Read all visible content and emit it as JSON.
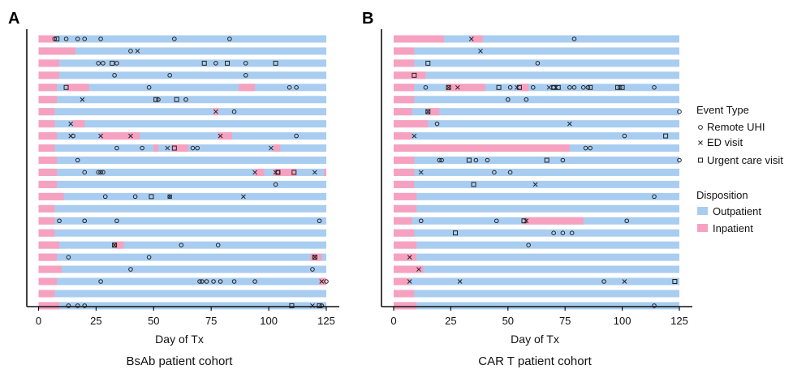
{
  "chart_data": [
    {
      "panel": "A",
      "caption": "BsAb patient cohort",
      "type": "bar",
      "xlabel": "Day of Tx",
      "xlim": [
        0,
        125
      ],
      "xticks": [
        0,
        25,
        50,
        75,
        100,
        125
      ],
      "patients": [
        {
          "outpatient": [
            [
              0,
              125
            ]
          ],
          "inpatient": [
            [
              0,
              7
            ]
          ],
          "remote": [
            7,
            12,
            17,
            20,
            27,
            59,
            83
          ],
          "ed": [],
          "urgent": [
            8
          ]
        },
        {
          "outpatient": [
            [
              0,
              125
            ]
          ],
          "inpatient": [
            [
              0,
              16
            ]
          ],
          "remote": [
            40
          ],
          "ed": [
            43
          ],
          "urgent": []
        },
        {
          "outpatient": [
            [
              0,
              125
            ]
          ],
          "inpatient": [
            [
              0,
              9
            ]
          ],
          "remote": [
            26,
            28,
            34,
            77,
            90
          ],
          "ed": [],
          "urgent": [
            32,
            72,
            82,
            103
          ]
        },
        {
          "outpatient": [
            [
              0,
              125
            ]
          ],
          "inpatient": [
            [
              0,
              9
            ]
          ],
          "remote": [
            33,
            57,
            90
          ],
          "ed": [],
          "urgent": []
        },
        {
          "outpatient": [
            [
              0,
              125
            ]
          ],
          "inpatient": [
            [
              0,
              8
            ],
            [
              12,
              22
            ],
            [
              87,
              94
            ]
          ],
          "remote": [
            48,
            109,
            112
          ],
          "ed": [],
          "urgent": [
            12
          ]
        },
        {
          "outpatient": [
            [
              0,
              125
            ]
          ],
          "inpatient": [
            [
              0,
              8
            ]
          ],
          "remote": [
            52,
            64
          ],
          "ed": [
            19
          ],
          "urgent": [
            51,
            60
          ]
        },
        {
          "outpatient": [
            [
              0,
              125
            ]
          ],
          "inpatient": [
            [
              0,
              7
            ],
            [
              76,
              78
            ]
          ],
          "remote": [
            85
          ],
          "ed": [
            77
          ],
          "urgent": []
        },
        {
          "outpatient": [
            [
              0,
              125
            ]
          ],
          "inpatient": [
            [
              0,
              7
            ],
            [
              15,
              20
            ]
          ],
          "remote": [],
          "ed": [
            14
          ],
          "urgent": []
        },
        {
          "outpatient": [
            [
              0,
              125
            ]
          ],
          "inpatient": [
            [
              0,
              8
            ],
            [
              27,
              44
            ],
            [
              78,
              84
            ]
          ],
          "remote": [
            15,
            112
          ],
          "ed": [
            14,
            27,
            40,
            79
          ],
          "urgent": []
        },
        {
          "outpatient": [
            [
              0,
              125
            ]
          ],
          "inpatient": [
            [
              0,
              7
            ],
            [
              50,
              52
            ],
            [
              58,
              65
            ],
            [
              102,
              105
            ]
          ],
          "remote": [
            34,
            45,
            67,
            69
          ],
          "ed": [
            56,
            101
          ],
          "urgent": [
            59
          ]
        },
        {
          "outpatient": [
            [
              0,
              125
            ]
          ],
          "inpatient": [
            [
              0,
              8
            ]
          ],
          "remote": [
            17
          ],
          "ed": [],
          "urgent": []
        },
        {
          "outpatient": [
            [
              0,
              125
            ]
          ],
          "inpatient": [
            [
              0,
              8
            ],
            [
              94,
              98
            ],
            [
              102,
              112
            ],
            [
              124,
              125
            ]
          ],
          "remote": [
            20,
            26,
            27,
            28,
            104
          ],
          "ed": [
            94,
            103,
            120
          ],
          "urgent": [
            104,
            111
          ]
        },
        {
          "outpatient": [
            [
              0,
              125
            ]
          ],
          "inpatient": [
            [
              0,
              8
            ]
          ],
          "remote": [
            103
          ],
          "ed": [],
          "urgent": []
        },
        {
          "outpatient": [
            [
              0,
              125
            ]
          ],
          "inpatient": [
            [
              0,
              11
            ]
          ],
          "remote": [
            29,
            42,
            57
          ],
          "ed": [
            57,
            89
          ],
          "urgent": [
            49
          ]
        },
        {
          "outpatient": [
            [
              0,
              125
            ]
          ],
          "inpatient": [
            [
              0,
              7
            ]
          ],
          "remote": [],
          "ed": [],
          "urgent": []
        },
        {
          "outpatient": [
            [
              0,
              125
            ]
          ],
          "inpatient": [
            [
              0,
              7
            ]
          ],
          "remote": [
            9,
            20,
            34,
            122
          ],
          "ed": [],
          "urgent": []
        },
        {
          "outpatient": [
            [
              0,
              125
            ]
          ],
          "inpatient": [
            [
              0,
              7
            ]
          ],
          "remote": [],
          "ed": [],
          "urgent": []
        },
        {
          "outpatient": [
            [
              0,
              125
            ]
          ],
          "inpatient": [
            [
              0,
              9
            ],
            [
              33,
              37
            ]
          ],
          "remote": [
            62,
            78
          ],
          "ed": [
            33
          ],
          "urgent": [
            33
          ]
        },
        {
          "outpatient": [
            [
              0,
              125
            ]
          ],
          "inpatient": [
            [
              0,
              8
            ],
            [
              118,
              123
            ]
          ],
          "remote": [
            13,
            48
          ],
          "ed": [
            120
          ],
          "urgent": [
            120
          ]
        },
        {
          "outpatient": [
            [
              0,
              125
            ]
          ],
          "inpatient": [
            [
              0,
              10
            ]
          ],
          "remote": [
            40,
            119
          ],
          "ed": [],
          "urgent": []
        },
        {
          "outpatient": [
            [
              0,
              125
            ]
          ],
          "inpatient": [
            [
              0,
              8
            ],
            [
              122,
              125
            ]
          ],
          "remote": [
            27,
            70,
            71,
            73,
            76,
            79,
            85,
            94,
            125
          ],
          "ed": [
            123
          ],
          "urgent": []
        },
        {
          "outpatient": [
            [
              0,
              125
            ]
          ],
          "inpatient": [
            [
              0,
              7
            ]
          ],
          "remote": [],
          "ed": [],
          "urgent": []
        },
        {
          "outpatient": [
            [
              0,
              125
            ]
          ],
          "inpatient": [
            [
              0,
              9
            ]
          ],
          "remote": [
            13,
            17,
            20,
            123
          ],
          "ed": [
            119
          ],
          "urgent": [
            110,
            122
          ]
        }
      ]
    },
    {
      "panel": "B",
      "caption": "CAR T patient cohort",
      "type": "bar",
      "xlabel": "Day of Tx",
      "xlim": [
        0,
        125
      ],
      "xticks": [
        0,
        25,
        50,
        75,
        100,
        125
      ],
      "patients": [
        {
          "outpatient": [
            [
              0,
              125
            ]
          ],
          "inpatient": [
            [
              0,
              22
            ],
            [
              34,
              39
            ]
          ],
          "remote": [
            79
          ],
          "ed": [
            34
          ],
          "urgent": []
        },
        {
          "outpatient": [
            [
              0,
              125
            ]
          ],
          "inpatient": [
            [
              0,
              9
            ]
          ],
          "remote": [],
          "ed": [
            38
          ],
          "urgent": []
        },
        {
          "outpatient": [
            [
              0,
              125
            ]
          ],
          "inpatient": [
            [
              0,
              9
            ]
          ],
          "remote": [
            63
          ],
          "ed": [],
          "urgent": [
            15
          ]
        },
        {
          "outpatient": [
            [
              0,
              125
            ]
          ],
          "inpatient": [
            [
              0,
              14
            ]
          ],
          "remote": [],
          "ed": [],
          "urgent": [
            9
          ]
        },
        {
          "outpatient": [
            [
              0,
              125
            ]
          ],
          "inpatient": [
            [
              0,
              9
            ],
            [
              23,
              40
            ],
            [
              55,
              59
            ]
          ],
          "remote": [
            14,
            51,
            61,
            70,
            77,
            79,
            83,
            85,
            99,
            114
          ],
          "ed": [
            24,
            28,
            54,
            68,
            71
          ],
          "urgent": [
            24,
            46,
            55,
            70,
            72,
            86,
            98,
            100
          ]
        },
        {
          "outpatient": [
            [
              0,
              125
            ]
          ],
          "inpatient": [
            [
              0,
              9
            ]
          ],
          "remote": [
            50,
            58
          ],
          "ed": [],
          "urgent": []
        },
        {
          "outpatient": [
            [
              0,
              125
            ]
          ],
          "inpatient": [
            [
              0,
              8
            ],
            [
              15,
              20
            ]
          ],
          "remote": [
            125
          ],
          "ed": [
            15
          ],
          "urgent": [
            15
          ]
        },
        {
          "outpatient": [
            [
              0,
              125
            ]
          ],
          "inpatient": [
            [
              0,
              15
            ]
          ],
          "remote": [
            19
          ],
          "ed": [
            77
          ],
          "urgent": []
        },
        {
          "outpatient": [
            [
              0,
              125
            ]
          ],
          "inpatient": [
            [
              0,
              8
            ]
          ],
          "remote": [
            101
          ],
          "ed": [
            9
          ],
          "urgent": [
            119
          ]
        },
        {
          "outpatient": [
            [
              0,
              125
            ]
          ],
          "inpatient": [
            [
              0,
              77
            ]
          ],
          "remote": [
            84,
            86
          ],
          "ed": [],
          "urgent": []
        },
        {
          "outpatient": [
            [
              0,
              125
            ]
          ],
          "inpatient": [
            [
              0,
              9
            ]
          ],
          "remote": [
            20,
            21,
            36,
            41,
            74,
            125
          ],
          "ed": [],
          "urgent": [
            33,
            67
          ]
        },
        {
          "outpatient": [
            [
              0,
              125
            ]
          ],
          "inpatient": [
            [
              0,
              9
            ]
          ],
          "remote": [
            44,
            51
          ],
          "ed": [
            12
          ],
          "urgent": []
        },
        {
          "outpatient": [
            [
              0,
              125
            ]
          ],
          "inpatient": [
            [
              0,
              9
            ]
          ],
          "remote": [],
          "ed": [
            62
          ],
          "urgent": [
            35
          ]
        },
        {
          "outpatient": [
            [
              0,
              125
            ]
          ],
          "inpatient": [
            [
              0,
              10
            ]
          ],
          "remote": [
            114
          ],
          "ed": [],
          "urgent": []
        },
        {
          "outpatient": [
            [
              0,
              125
            ]
          ],
          "inpatient": [
            [
              0,
              10
            ]
          ],
          "remote": [],
          "ed": [],
          "urgent": []
        },
        {
          "outpatient": [
            [
              0,
              125
            ]
          ],
          "inpatient": [
            [
              0,
              8
            ],
            [
              57,
              83
            ]
          ],
          "remote": [
            12,
            45,
            102
          ],
          "ed": [
            58
          ],
          "urgent": [
            57
          ]
        },
        {
          "outpatient": [
            [
              0,
              125
            ]
          ],
          "inpatient": [
            [
              0,
              9
            ]
          ],
          "remote": [
            70,
            74,
            78
          ],
          "ed": [],
          "urgent": [
            27
          ]
        },
        {
          "outpatient": [
            [
              0,
              125
            ]
          ],
          "inpatient": [
            [
              0,
              10
            ]
          ],
          "remote": [
            59
          ],
          "ed": [],
          "urgent": []
        },
        {
          "outpatient": [
            [
              0,
              125
            ]
          ],
          "inpatient": [
            [
              0,
              10
            ]
          ],
          "remote": [],
          "ed": [
            7
          ],
          "urgent": []
        },
        {
          "outpatient": [
            [
              0,
              125
            ]
          ],
          "inpatient": [
            [
              0,
              13
            ]
          ],
          "remote": [],
          "ed": [
            11
          ],
          "urgent": []
        },
        {
          "outpatient": [
            [
              0,
              125
            ]
          ],
          "inpatient": [
            [
              0,
              7
            ]
          ],
          "remote": [
            92
          ],
          "ed": [
            7,
            29,
            101
          ],
          "urgent": [
            123
          ]
        },
        {
          "outpatient": [
            [
              0,
              125
            ]
          ],
          "inpatient": [
            [
              0,
              9
            ]
          ],
          "remote": [],
          "ed": [],
          "urgent": []
        },
        {
          "outpatient": [
            [
              0,
              125
            ]
          ],
          "inpatient": [
            [
              0,
              10
            ]
          ],
          "remote": [
            114
          ],
          "ed": [],
          "urgent": []
        }
      ]
    }
  ],
  "legend": {
    "event_title": "Event Type",
    "events": [
      {
        "key": "remote",
        "label": "Remote UHI",
        "marker": "circle"
      },
      {
        "key": "ed",
        "label": "ED visit",
        "marker": "x"
      },
      {
        "key": "urgent",
        "label": "Urgent care visit",
        "marker": "square"
      }
    ],
    "disposition_title": "Disposition",
    "dispositions": [
      {
        "key": "outpatient",
        "label": "Outpatient",
        "color": "#a9cdf0"
      },
      {
        "key": "inpatient",
        "label": "Inpatient",
        "color": "#f7a1c0"
      }
    ]
  },
  "colors": {
    "outpatient": "#a9cdf0",
    "inpatient": "#f7a1c0",
    "axis": "#111111",
    "marker": "#222222"
  }
}
